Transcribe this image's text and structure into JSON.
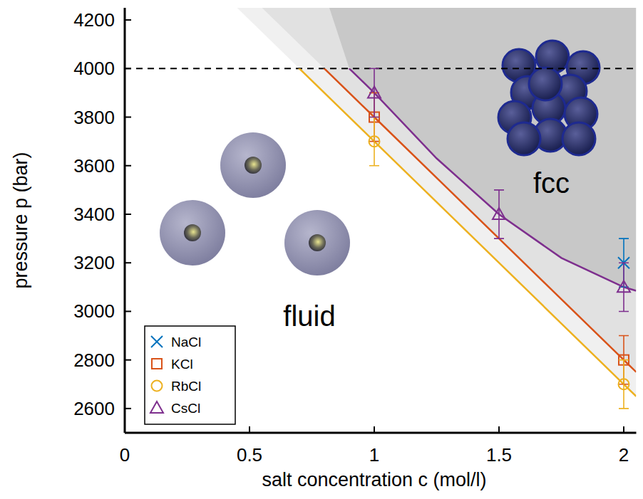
{
  "chart_data": {
    "type": "scatter",
    "xlabel": "salt concentration c (mol/l)",
    "ylabel": "pressure p (bar)",
    "xlim": [
      0,
      2.05
    ],
    "ylim": [
      2500,
      4250
    ],
    "xticks": [
      0,
      0.5,
      1,
      1.5,
      2
    ],
    "yticks": [
      2600,
      2800,
      3000,
      3200,
      3400,
      3600,
      3800,
      4000,
      4200
    ],
    "grid": false,
    "legend": "lower left",
    "hline": {
      "value": 4000,
      "line_style": "dashed"
    },
    "series": [
      {
        "name": "NaCl",
        "color": "#0072bd",
        "marker": "x",
        "x": [
          2
        ],
        "values": [
          3200
        ],
        "errors": [
          100
        ]
      },
      {
        "name": "KCl",
        "color": "#d95319",
        "marker": "square",
        "x": [
          1,
          2
        ],
        "values": [
          3800,
          2800
        ],
        "errors": [
          100,
          100
        ],
        "boundary": {
          "x": [
            0.55,
            0.8,
            1,
            2,
            2.05
          ],
          "values": [
            4250,
            4000,
            3800,
            2800,
            2750
          ]
        }
      },
      {
        "name": "RbCl",
        "color": "#edb120",
        "marker": "circle",
        "x": [
          1,
          2
        ],
        "values": [
          3700,
          2700
        ],
        "errors": [
          100,
          100
        ],
        "boundary": {
          "x": [
            0.45,
            0.7,
            1,
            2,
            2.05
          ],
          "values": [
            4250,
            4000,
            3700,
            2700,
            2650
          ]
        }
      },
      {
        "name": "CsCl",
        "color": "#7e2f8e",
        "marker": "triangle",
        "x": [
          1,
          1.5,
          2
        ],
        "values": [
          3900,
          3400,
          3100
        ],
        "errors": [
          100,
          100,
          100
        ],
        "boundary": {
          "x": [
            0.82,
            0.9,
            1,
            1.25,
            1.5,
            1.75,
            2,
            2.05
          ],
          "values": [
            4250,
            4000,
            3900,
            3630,
            3400,
            3220,
            3100,
            3085
          ]
        }
      }
    ],
    "annotations": [
      {
        "text": "fluid",
        "x": 0.74,
        "y": 2980
      },
      {
        "text": "fcc",
        "x": 1.71,
        "y": 3530
      }
    ]
  }
}
